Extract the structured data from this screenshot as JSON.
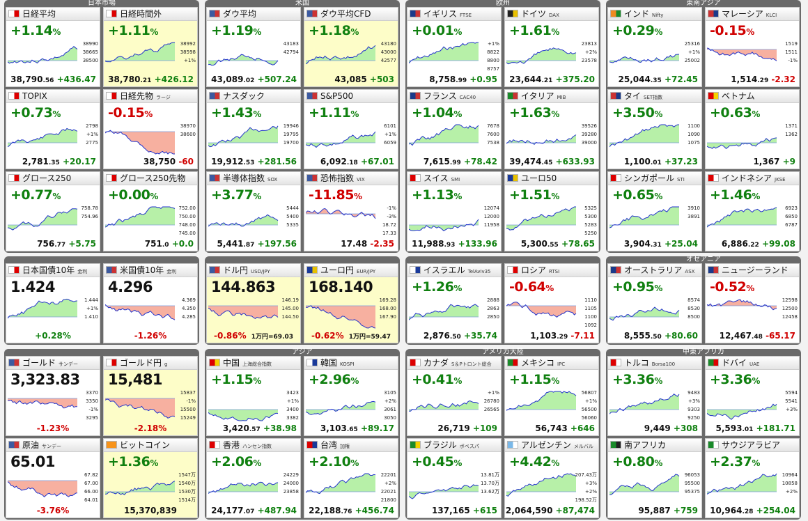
{
  "sections": [
    {
      "title": "日本市場",
      "col": 0,
      "rows": [
        0,
        1,
        2
      ]
    },
    {
      "title": "米国",
      "col": 1,
      "rows": [
        0,
        1,
        2
      ]
    },
    {
      "title": "欧州",
      "col": 2,
      "rows": [
        0,
        1,
        2
      ]
    },
    {
      "title": "東南アジア",
      "col": 3,
      "rows": [
        0,
        1,
        2
      ]
    },
    {
      "title": "",
      "col": 0,
      "rows": [
        3
      ]
    },
    {
      "title": "",
      "col": 1,
      "rows": [
        3
      ]
    },
    {
      "title": "",
      "col": 2,
      "rows": [
        3
      ]
    },
    {
      "title": "オセアニア",
      "col": 3,
      "rows": [
        3
      ]
    },
    {
      "title": "",
      "col": 0,
      "rows": [
        4,
        5
      ]
    },
    {
      "title": "アジア",
      "col": 1,
      "rows": [
        4,
        5
      ]
    },
    {
      "title": "アメリカ大陸",
      "col": 2,
      "rows": [
        4,
        5
      ]
    },
    {
      "title": "中東アフリカ",
      "col": 3,
      "rows": [
        4,
        5
      ]
    }
  ],
  "cards": [
    {
      "name": "日経平均",
      "sub": "",
      "pct": "+1.14",
      "dir": "up",
      "value": "38,790",
      "dec": ".56",
      "change": "+436.47",
      "cdir": "up",
      "flag": "#ffffff",
      "flag2": "#d00",
      "ticks": [
        "38990",
        "38665",
        "38500"
      ]
    },
    {
      "name": "日経時間外",
      "sub": "",
      "pct": "+1.11",
      "dir": "up",
      "value": "38,780",
      "dec": ".21",
      "change": "+426.12",
      "cdir": "up",
      "flag": "#ffffff",
      "flag2": "#d00",
      "ticks": [
        "38992",
        "38598",
        "+1%"
      ],
      "hi": true
    },
    {
      "name": "ダウ平均",
      "sub": "",
      "pct": "+1.19",
      "dir": "up",
      "value": "43,089",
      "dec": ".02",
      "change": "+507.24",
      "cdir": "up",
      "flag": "#3c5aa0",
      "flag2": "#c33",
      "ticks": [
        "43183",
        "42794"
      ]
    },
    {
      "name": "ダウ平均CFD",
      "sub": "",
      "pct": "+1.18",
      "dir": "up",
      "value": "43,085",
      "dec": "",
      "change": "+503",
      "cdir": "up",
      "flag": "#3c5aa0",
      "flag2": "#c33",
      "ticks": [
        "43180",
        "43000",
        "42577"
      ],
      "hi": true
    },
    {
      "name": "イギリス",
      "sub": "FTSE",
      "pct": "+0.01",
      "dir": "up",
      "value": "8,758",
      "dec": ".99",
      "change": "+0.95",
      "cdir": "up",
      "flag": "#1a3a8a",
      "flag2": "#c33",
      "ticks": [
        "+1%",
        "8822",
        "8800",
        "8757"
      ]
    },
    {
      "name": "ドイツ",
      "sub": "DAX",
      "pct": "+1.61",
      "dir": "up",
      "value": "23,644",
      "dec": ".21",
      "change": "+375.20",
      "cdir": "up",
      "flag": "#222",
      "flag2": "#e8c000",
      "ticks": [
        "23813",
        "+2%",
        "23578"
      ]
    },
    {
      "name": "インド",
      "sub": "Nifty",
      "pct": "+0.29",
      "dir": "up",
      "value": "25,044",
      "dec": ".35",
      "change": "+72.45",
      "cdir": "up",
      "flag": "#f08a20",
      "flag2": "#1a8a2a",
      "ticks": [
        "25316",
        "+1%",
        "25002"
      ]
    },
    {
      "name": "マレーシア",
      "sub": "KLCI",
      "pct": "-0.15",
      "dir": "down",
      "value": "1,514",
      "dec": ".29",
      "change": "-2.32",
      "cdir": "down",
      "flag": "#c33",
      "flag2": "#1a3a8a",
      "ticks": [
        "1519",
        "1511",
        "-1%"
      ]
    },
    {
      "name": "TOPIX",
      "sub": "",
      "pct": "+0.73",
      "dir": "up",
      "value": "2,781",
      "dec": ".35",
      "change": "+20.17",
      "cdir": "up",
      "flag": "#ffffff",
      "flag2": "#d00",
      "ticks": [
        "2798",
        "+1%",
        "2775"
      ]
    },
    {
      "name": "日経先物",
      "sub": "ラージ",
      "pct": "-0.15",
      "dir": "down",
      "value": "38,750",
      "dec": "",
      "change": "-60",
      "cdir": "down",
      "flag": "#ffffff",
      "flag2": "#d00",
      "ticks": [
        "38970",
        "38600"
      ]
    },
    {
      "name": "ナスダック",
      "sub": "",
      "pct": "+1.43",
      "dir": "up",
      "value": "19,912",
      "dec": ".53",
      "change": "+281.56",
      "cdir": "up",
      "flag": "#3c5aa0",
      "flag2": "#c33",
      "ticks": [
        "19946",
        "19795",
        "19700"
      ]
    },
    {
      "name": "S&P500",
      "sub": "",
      "pct": "+1.11",
      "dir": "up",
      "value": "6,092",
      "dec": ".18",
      "change": "+67.01",
      "cdir": "up",
      "flag": "#3c5aa0",
      "flag2": "#c33",
      "ticks": [
        "6101",
        "+1%",
        "6059"
      ]
    },
    {
      "name": "フランス",
      "sub": "CAC40",
      "pct": "+1.04",
      "dir": "up",
      "value": "7,615",
      "dec": ".99",
      "change": "+78.42",
      "cdir": "up",
      "flag": "#1a3a8a",
      "flag2": "#c33",
      "ticks": [
        "7678",
        "7600",
        "7538"
      ]
    },
    {
      "name": "イタリア",
      "sub": "MIB",
      "pct": "+1.63",
      "dir": "up",
      "value": "39,474",
      "dec": ".45",
      "change": "+633.93",
      "cdir": "up",
      "flag": "#1a8a2a",
      "flag2": "#c33",
      "ticks": [
        "39526",
        "39280",
        "39000"
      ]
    },
    {
      "name": "タイ",
      "sub": "SET指数",
      "pct": "+3.50",
      "dir": "up",
      "value": "1,100",
      "dec": ".01",
      "change": "+37.23",
      "cdir": "up",
      "flag": "#c33",
      "flag2": "#1a3a8a",
      "ticks": [
        "1100",
        "1090",
        "1075"
      ]
    },
    {
      "name": "ベトナム",
      "sub": "",
      "pct": "+0.63",
      "dir": "up",
      "value": "1,367",
      "dec": "",
      "change": "+9",
      "cdir": "up",
      "flag": "#d00",
      "flag2": "#f5d000",
      "ticks": [
        "1371",
        "1362"
      ]
    },
    {
      "name": "グロース250",
      "sub": "",
      "pct": "+0.77",
      "dir": "up",
      "value": "756",
      "dec": ".77",
      "change": "+5.75",
      "cdir": "up",
      "flag": "#ffffff",
      "flag2": "#d00",
      "ticks": [
        "758.78",
        "754.96"
      ]
    },
    {
      "name": "グロース250先物",
      "sub": "",
      "pct": "+0.00",
      "dir": "up",
      "value": "751",
      "dec": ".0",
      "change": "+0.0",
      "cdir": "up",
      "flag": "#ffffff",
      "flag2": "#d00",
      "ticks": [
        "752.00",
        "750.00",
        "748.00",
        "745.00"
      ]
    },
    {
      "name": "半導体指数",
      "sub": "SOX",
      "pct": "+3.77",
      "dir": "up",
      "value": "5,441",
      "dec": ".87",
      "change": "+197.56",
      "cdir": "up",
      "flag": "#3c5aa0",
      "flag2": "#c33",
      "ticks": [
        "5444",
        "5400",
        "5335"
      ]
    },
    {
      "name": "恐怖指数",
      "sub": "VIX",
      "pct": "-11.85",
      "dir": "down",
      "value": "17.48",
      "dec": "",
      "change": "-2.35",
      "cdir": "down",
      "flag": "#3c5aa0",
      "flag2": "#c33",
      "ticks": [
        "-1%",
        "-3%",
        "18.72",
        "17.33"
      ]
    },
    {
      "name": "スイス",
      "sub": "SMI",
      "pct": "+1.13",
      "dir": "up",
      "value": "11,988",
      "dec": ".93",
      "change": "+133.96",
      "cdir": "up",
      "flag": "#d00",
      "flag2": "#ffffff",
      "ticks": [
        "12074",
        "12000",
        "11958"
      ]
    },
    {
      "name": "ユーロ50",
      "sub": "",
      "pct": "+1.51",
      "dir": "up",
      "value": "5,300",
      "dec": ".55",
      "change": "+78.65",
      "cdir": "up",
      "flag": "#1a3a9a",
      "flag2": "#e8c000",
      "ticks": [
        "5325",
        "5300",
        "5283",
        "5250"
      ]
    },
    {
      "name": "シンガポール",
      "sub": "STI",
      "pct": "+0.65",
      "dir": "up",
      "value": "3,904",
      "dec": ".31",
      "change": "+25.04",
      "cdir": "up",
      "flag": "#d00",
      "flag2": "#ffffff",
      "ticks": [
        "3910",
        "3891"
      ]
    },
    {
      "name": "インドネシア",
      "sub": "JKSE",
      "pct": "+1.46",
      "dir": "up",
      "value": "6,886",
      "dec": ".22",
      "change": "+99.08",
      "cdir": "up",
      "flag": "#d00",
      "flag2": "#ffffff",
      "ticks": [
        "6923",
        "6850",
        "6787"
      ]
    },
    {
      "name": "日本国債10年",
      "sub": "金利",
      "pct": "1.424",
      "dir": "big",
      "value": "",
      "dec": "",
      "change": "+0.28%",
      "cdir": "up",
      "flag": "#ffffff",
      "flag2": "#d00",
      "ticks": [
        "1.444",
        "+1%",
        "1.410"
      ],
      "center": true
    },
    {
      "name": "米国債10年",
      "sub": "金利",
      "pct": "4.296",
      "dir": "big",
      "value": "",
      "dec": "",
      "change": "-1.26%",
      "cdir": "down",
      "flag": "#3c5aa0",
      "flag2": "#c33",
      "ticks": [
        "4.369",
        "4.350",
        "4.285"
      ],
      "center": true
    },
    {
      "name": "ドル円",
      "sub": "USD/JPY",
      "pct": "144.863",
      "dir": "big",
      "value": "1万円=69.03",
      "dec": "",
      "change": "-0.86%",
      "cdir": "down",
      "flag": "#3c5aa0",
      "flag2": "#c33",
      "ticks": [
        "146.19",
        "145.00",
        "144.50"
      ],
      "hi": true,
      "fx": true
    },
    {
      "name": "ユーロ円",
      "sub": "EUR/JPY",
      "pct": "168.140",
      "dir": "big",
      "value": "1万円=59.47",
      "dec": "",
      "change": "-0.62%",
      "cdir": "down",
      "flag": "#1a3a9a",
      "flag2": "#e8c000",
      "ticks": [
        "169.28",
        "168.00",
        "167.90"
      ],
      "hi": true,
      "fx": true
    },
    {
      "name": "イスラエル",
      "sub": "TelAviv35",
      "pct": "+1.26",
      "dir": "up",
      "value": "2,876",
      "dec": ".50",
      "change": "+35.74",
      "cdir": "up",
      "flag": "#ffffff",
      "flag2": "#1a3a9a",
      "ticks": [
        "2888",
        "2863",
        "2850"
      ]
    },
    {
      "name": "ロシア",
      "sub": "RTSI",
      "pct": "-0.64",
      "dir": "down",
      "value": "1,103",
      "dec": ".29",
      "change": "-7.11",
      "cdir": "down",
      "flag": "#ffffff",
      "flag2": "#d00",
      "ticks": [
        "1110",
        "1105",
        "1100",
        "1092"
      ]
    },
    {
      "name": "オーストラリア",
      "sub": "ASX",
      "pct": "+0.95",
      "dir": "up",
      "value": "8,555",
      "dec": ".50",
      "change": "+80.60",
      "cdir": "up",
      "flag": "#1a3a8a",
      "flag2": "#c33",
      "ticks": [
        "8574",
        "8530",
        "8500"
      ]
    },
    {
      "name": "ニュージーランド",
      "sub": "",
      "pct": "-0.52",
      "dir": "down",
      "value": "12,467",
      "dec": ".48",
      "change": "-65.17",
      "cdir": "down",
      "flag": "#1a3a8a",
      "flag2": "#c33",
      "ticks": [
        "12598",
        "12500",
        "12458"
      ]
    },
    {
      "name": "ゴールド",
      "sub": "サンデー",
      "pct": "3,323.83",
      "dir": "big",
      "value": "",
      "dec": "",
      "change": "-1.23%",
      "cdir": "down",
      "flag": "#3c5aa0",
      "flag2": "#c33",
      "ticks": [
        "3370",
        "3350",
        "-1%",
        "3295"
      ],
      "center": true
    },
    {
      "name": "ゴールド円",
      "sub": "g",
      "pct": "15,481",
      "dir": "big",
      "value": "",
      "dec": "",
      "change": "-2.18%",
      "cdir": "down",
      "flag": "#ffffff",
      "flag2": "#d00",
      "ticks": [
        "15837",
        "-1%",
        "15500",
        "15249"
      ],
      "center": true,
      "hi": true
    },
    {
      "name": "中国",
      "sub": "上海総合指数",
      "pct": "+1.15",
      "dir": "up",
      "value": "3,420",
      "dec": ".57",
      "change": "+38.98",
      "cdir": "up",
      "flag": "#d00",
      "flag2": "#f5d000",
      "ticks": [
        "3423",
        "+1%",
        "3400",
        "3382"
      ]
    },
    {
      "name": "韓国",
      "sub": "KOSPI",
      "pct": "+2.96",
      "dir": "up",
      "value": "3,103",
      "dec": ".65",
      "change": "+89.17",
      "cdir": "up",
      "flag": "#ffffff",
      "flag2": "#1a3a9a",
      "ticks": [
        "3105",
        "+2%",
        "3061",
        "3050"
      ]
    },
    {
      "name": "カナダ",
      "sub": "S＆Pトロント総合",
      "pct": "+0.41",
      "dir": "up",
      "value": "26,719",
      "dec": "",
      "change": "+109",
      "cdir": "up",
      "flag": "#d00",
      "flag2": "#ffffff",
      "ticks": [
        "+1%",
        "26780",
        "26565"
      ]
    },
    {
      "name": "メキシコ",
      "sub": "IPC",
      "pct": "+1.15",
      "dir": "up",
      "value": "56,743",
      "dec": "",
      "change": "+646",
      "cdir": "up",
      "flag": "#1a8a2a",
      "flag2": "#d00",
      "ticks": [
        "56807",
        "+1%",
        "56500",
        "56060"
      ]
    },
    {
      "name": "トルコ",
      "sub": "Borsa100",
      "pct": "+3.36",
      "dir": "up",
      "value": "9,449",
      "dec": "",
      "change": "+308",
      "cdir": "up",
      "flag": "#d00",
      "flag2": "#ffffff",
      "ticks": [
        "9483",
        "+3%",
        "9303",
        "9250"
      ]
    },
    {
      "name": "ドバイ",
      "sub": "UAE",
      "pct": "+3.36",
      "dir": "up",
      "value": "5,593",
      "dec": ".01",
      "change": "+181.71",
      "cdir": "up",
      "flag": "#1a8a2a",
      "flag2": "#d00",
      "ticks": [
        "5594",
        "5541",
        "+3%"
      ]
    },
    {
      "name": "原油",
      "sub": "サンデー",
      "pct": "65.01",
      "dir": "big",
      "value": "",
      "dec": "",
      "change": "-3.76%",
      "cdir": "down",
      "flag": "#3c5aa0",
      "flag2": "#c33",
      "ticks": [
        "67.82",
        "67.00",
        "66.00",
        "64.01"
      ],
      "center": true
    },
    {
      "name": "ビットコイン",
      "sub": "",
      "pct": "+1.36",
      "dir": "up",
      "value": "15,370,839",
      "dec": "",
      "change": "",
      "cdir": "up",
      "flag": "#f7931a",
      "flag2": "#f7931a",
      "ticks": [
        "1547万",
        "1540万",
        "1530万",
        "1514万"
      ],
      "hi": true,
      "center": true
    },
    {
      "name": "香港",
      "sub": "ハンセン指数",
      "pct": "+2.06",
      "dir": "up",
      "value": "24,177",
      "dec": ".07",
      "change": "+487.94",
      "cdir": "up",
      "flag": "#d00",
      "flag2": "#ffffff",
      "ticks": [
        "24229",
        "24000",
        "23858"
      ]
    },
    {
      "name": "台湾",
      "sub": "加権",
      "pct": "+2.10",
      "dir": "up",
      "value": "22,188",
      "dec": ".76",
      "change": "+456.74",
      "cdir": "up",
      "flag": "#d00",
      "flag2": "#1a3a9a",
      "ticks": [
        "22201",
        "+2%",
        "22021",
        "21800"
      ]
    },
    {
      "name": "ブラジル",
      "sub": "ボベスパ",
      "pct": "+0.45",
      "dir": "up",
      "value": "137,165",
      "dec": "",
      "change": "+615",
      "cdir": "up",
      "flag": "#1a8a2a",
      "flag2": "#f5d000",
      "ticks": [
        "13.81万",
        "13.70万",
        "13.62万"
      ]
    },
    {
      "name": "アルゼンチン",
      "sub": "メルバル",
      "pct": "+4.42",
      "dir": "up",
      "value": "2,064,590",
      "dec": "",
      "change": "+87,474",
      "cdir": "up",
      "flag": "#7ab8e8",
      "flag2": "#ffffff",
      "ticks": [
        "207.43万",
        "+3%",
        "+2%",
        "198.52万"
      ]
    },
    {
      "name": "南アフリカ",
      "sub": "",
      "pct": "+0.80",
      "dir": "up",
      "value": "95,887",
      "dec": "",
      "change": "+759",
      "cdir": "up",
      "flag": "#1a8a2a",
      "flag2": "#222",
      "ticks": [
        "96053",
        "95500",
        "95375"
      ]
    },
    {
      "name": "サウジアラビア",
      "sub": "",
      "pct": "+2.37",
      "dir": "up",
      "value": "10,964",
      "dec": ".28",
      "change": "+254.04",
      "cdir": "up",
      "flag": "#1a8a2a",
      "flag2": "#ffffff",
      "ticks": [
        "10964",
        "10858",
        "+2%"
      ]
    }
  ]
}
